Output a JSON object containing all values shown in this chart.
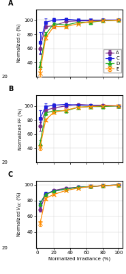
{
  "x": [
    3,
    10,
    20,
    35,
    50,
    65,
    80,
    100
  ],
  "panel_A": {
    "A": [
      60,
      91,
      92,
      98,
      99,
      99,
      100,
      100
    ],
    "C": [
      68,
      97,
      100,
      101,
      100,
      100,
      100,
      100
    ],
    "D": [
      35,
      80,
      95,
      93,
      97,
      97,
      99,
      100
    ],
    "E": [
      25,
      75,
      91,
      91,
      95,
      98,
      99,
      100
    ],
    "A_err": [
      8,
      2,
      2,
      1,
      1,
      1,
      0,
      0
    ],
    "C_err": [
      15,
      5,
      3,
      2,
      1,
      1,
      0,
      0
    ],
    "D_err": [
      5,
      3,
      2,
      2,
      1,
      1,
      0,
      0
    ],
    "E_err": [
      5,
      3,
      2,
      2,
      1,
      1,
      0,
      0
    ]
  },
  "panel_B": {
    "A": [
      71,
      94,
      97,
      100,
      102,
      101,
      101,
      100
    ],
    "C": [
      82,
      99,
      101,
      102,
      101,
      101,
      100,
      100
    ],
    "D": [
      46,
      90,
      93,
      93,
      98,
      99,
      99,
      100
    ],
    "E": [
      41,
      80,
      91,
      94,
      98,
      99,
      100,
      100
    ],
    "A_err": [
      6,
      3,
      2,
      2,
      1,
      1,
      0,
      0
    ],
    "C_err": [
      12,
      4,
      2,
      2,
      1,
      1,
      0,
      0
    ],
    "D_err": [
      5,
      3,
      2,
      2,
      1,
      1,
      0,
      0
    ],
    "E_err": [
      4,
      2,
      2,
      1,
      1,
      1,
      0,
      0
    ]
  },
  "panel_C": {
    "A": [
      69,
      88,
      93,
      96,
      97,
      98,
      99,
      100
    ],
    "C": [
      76,
      89,
      92,
      95,
      97,
      98,
      99,
      100
    ],
    "D": [
      76,
      88,
      92,
      95,
      97,
      98,
      99,
      100
    ],
    "E": [
      51,
      83,
      88,
      93,
      96,
      98,
      99,
      100
    ],
    "A_err": [
      3,
      2,
      1,
      1,
      1,
      1,
      0,
      0
    ],
    "C_err": [
      4,
      2,
      1,
      1,
      1,
      1,
      0,
      0
    ],
    "D_err": [
      3,
      2,
      1,
      1,
      1,
      1,
      0,
      0
    ],
    "E_err": [
      3,
      2,
      1,
      1,
      1,
      1,
      0,
      0
    ]
  },
  "colors": {
    "A": "#7B2D8B",
    "C": "#1F1FDD",
    "D": "#22AA22",
    "E": "#FF8C00"
  },
  "markers": {
    "A": "o",
    "C": "s",
    "D": "^",
    "E": "x"
  },
  "markersizes": {
    "A": 3.5,
    "C": 3.5,
    "D": 3.5,
    "E": 4.5
  },
  "ylabel_A": "Normalized $\\eta$ (%)",
  "ylabel_B": "Normalized FF (%)",
  "ylabel_C": "Normalized $V_{OC}$ (%)",
  "xlabel": "Normalized Irradiance (%)",
  "ylim_A": [
    20,
    115
  ],
  "ylim_B": [
    20,
    115
  ],
  "ylim_C": [
    20,
    105
  ],
  "yticks_AB": [
    40,
    60,
    80,
    100
  ],
  "yticks_C": [
    40,
    60,
    80,
    100
  ],
  "xlim": [
    -2,
    105
  ],
  "xticks": [
    0,
    20,
    40,
    60,
    80,
    100
  ],
  "panel_labels": [
    "A",
    "B",
    "C"
  ],
  "series": [
    "A",
    "C",
    "D",
    "E"
  ]
}
